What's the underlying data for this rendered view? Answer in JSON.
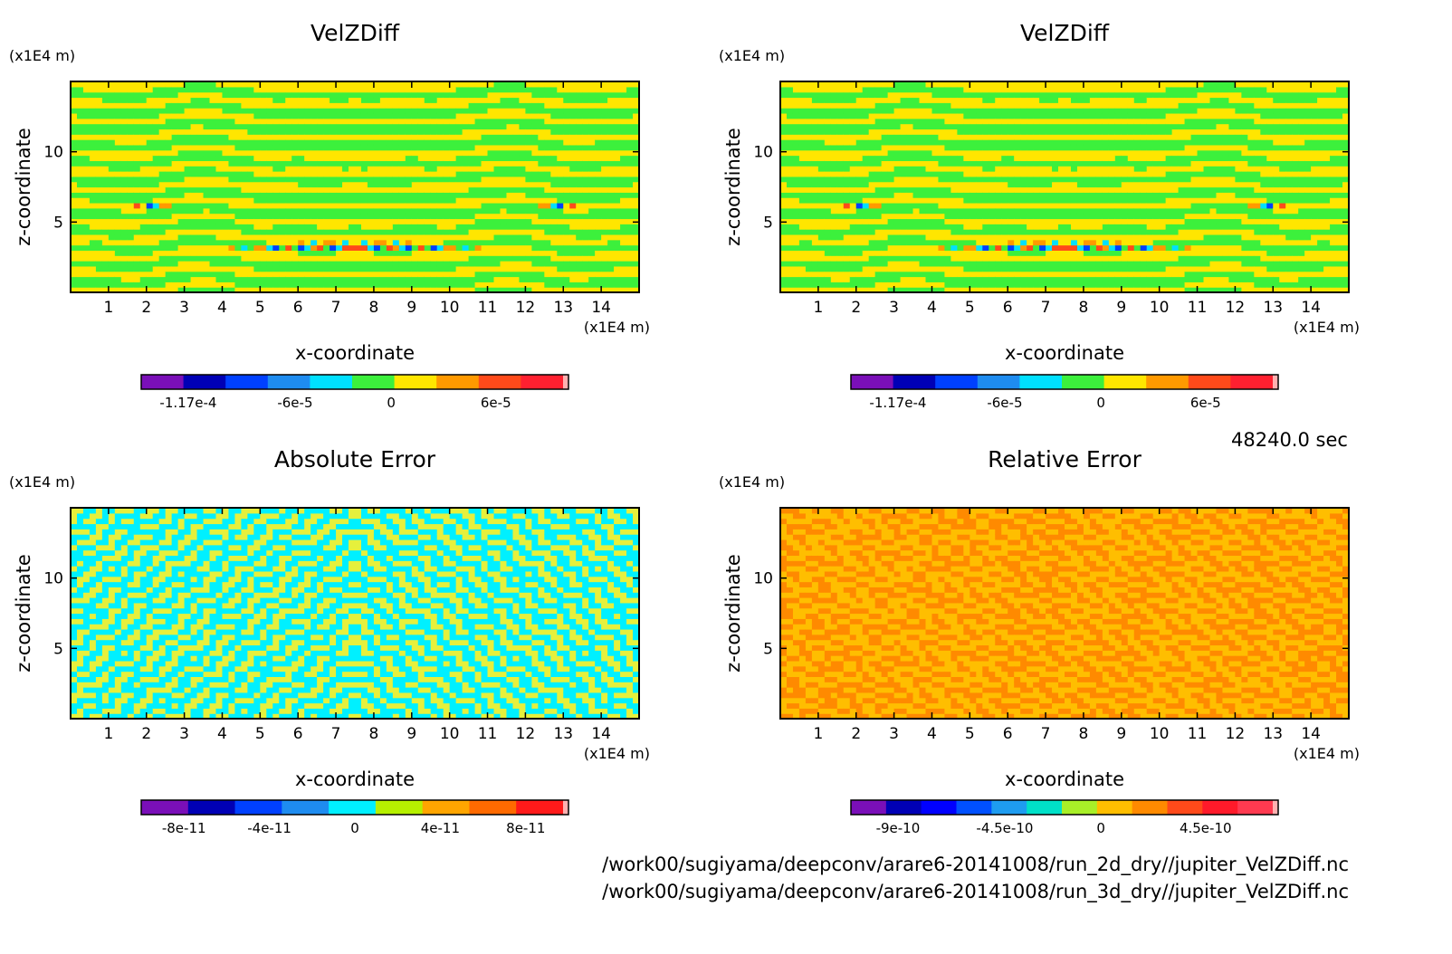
{
  "time_label": "48240.0 sec",
  "footer_paths": [
    "/work00/sugiyama/deepconv/arare6-20141008/run_2d_dry//jupiter_VelZDiff.nc",
    "/work00/sugiyama/deepconv/arare6-20141008/run_3d_dry//jupiter_VelZDiff.nc"
  ],
  "chart_data": [
    {
      "type": "heatmap",
      "title": "VelZDiff",
      "xlabel": "x-coordinate",
      "ylabel": "z-coordinate",
      "x_unit": "(x1E4 m)",
      "y_unit": "(x1E4 m)",
      "xlim": [
        0,
        15
      ],
      "ylim": [
        0,
        15
      ],
      "x_ticks": [
        1,
        2,
        3,
        4,
        5,
        6,
        7,
        8,
        9,
        10,
        11,
        12,
        13,
        14
      ],
      "y_ticks": [
        5,
        10
      ],
      "pattern": "bands",
      "colorbar": {
        "colors": [
          "#7a0fb8",
          "#0000b5",
          "#0040ff",
          "#1e8cf0",
          "#00e0ff",
          "#3cf03c",
          "#ffe600",
          "#ff9900",
          "#ff4a1a",
          "#ff2030",
          "#ffb0b0"
        ],
        "tick_labels": [
          "-1.17e-4",
          "-6e-5",
          "0",
          "6e-5"
        ]
      }
    },
    {
      "type": "heatmap",
      "title": "VelZDiff",
      "xlabel": "x-coordinate",
      "ylabel": "z-coordinate",
      "x_unit": "(x1E4 m)",
      "y_unit": "(x1E4 m)",
      "xlim": [
        0,
        15
      ],
      "ylim": [
        0,
        15
      ],
      "x_ticks": [
        1,
        2,
        3,
        4,
        5,
        6,
        7,
        8,
        9,
        10,
        11,
        12,
        13,
        14
      ],
      "y_ticks": [
        5,
        10
      ],
      "pattern": "bands",
      "colorbar": {
        "colors": [
          "#7a0fb8",
          "#0000b5",
          "#0040ff",
          "#1e8cf0",
          "#00e0ff",
          "#3cf03c",
          "#ffe600",
          "#ff9900",
          "#ff4a1a",
          "#ff2030",
          "#ffb0b0"
        ],
        "tick_labels": [
          "-1.17e-4",
          "-6e-5",
          "0",
          "6e-5"
        ]
      }
    },
    {
      "type": "heatmap",
      "title": "Absolute Error",
      "xlabel": "x-coordinate",
      "ylabel": "z-coordinate",
      "x_unit": "(x1E4 m)",
      "y_unit": "(x1E4 m)",
      "xlim": [
        0,
        15
      ],
      "ylim": [
        0,
        15
      ],
      "x_ticks": [
        1,
        2,
        3,
        4,
        5,
        6,
        7,
        8,
        9,
        10,
        11,
        12,
        13,
        14
      ],
      "y_ticks": [
        5,
        10
      ],
      "pattern": "noise-cyan-yellow",
      "colorbar": {
        "colors": [
          "#7a0fb8",
          "#0000b5",
          "#0040ff",
          "#1e8cf0",
          "#00f0ff",
          "#b6f000",
          "#ffa500",
          "#ff6a00",
          "#ff1a1a",
          "#ffb0b0"
        ],
        "tick_labels": [
          "-8e-11",
          "-4e-11",
          "0",
          "4e-11",
          "8e-11"
        ]
      }
    },
    {
      "type": "heatmap",
      "title": "Relative Error",
      "xlabel": "x-coordinate",
      "ylabel": "z-coordinate",
      "x_unit": "(x1E4 m)",
      "y_unit": "(x1E4 m)",
      "xlim": [
        0,
        15
      ],
      "ylim": [
        0,
        15
      ],
      "x_ticks": [
        1,
        2,
        3,
        4,
        5,
        6,
        7,
        8,
        9,
        10,
        11,
        12,
        13,
        14
      ],
      "y_ticks": [
        5,
        10
      ],
      "pattern": "noise-orange",
      "colorbar": {
        "colors": [
          "#7a0fb8",
          "#0000b5",
          "#0000ff",
          "#0050ff",
          "#1e9cf0",
          "#00e0c8",
          "#a8ef28",
          "#ffbe00",
          "#ff8a00",
          "#ff4a1a",
          "#ff1a2a",
          "#ff3a50",
          "#ffb0b0"
        ],
        "tick_labels": [
          "-9e-10",
          "-4.5e-10",
          "0",
          "4.5e-10"
        ]
      }
    }
  ]
}
